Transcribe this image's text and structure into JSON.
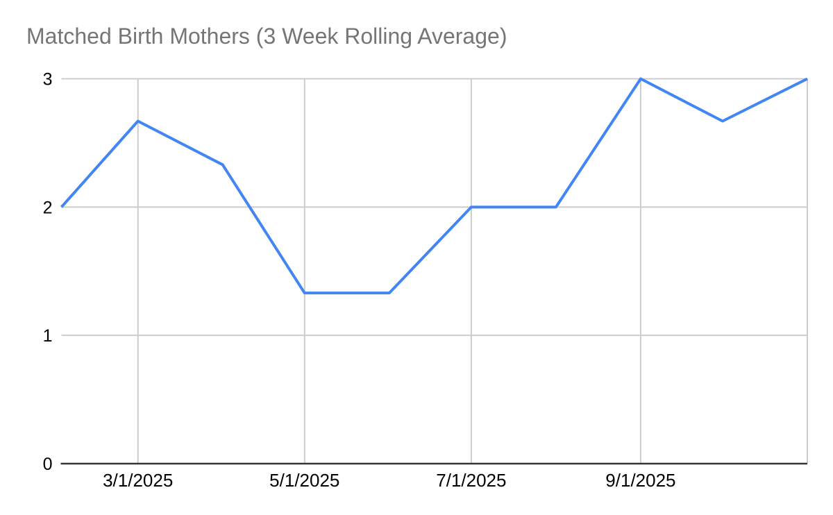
{
  "chart_data": {
    "type": "line",
    "title": "Matched Birth Mothers (3 Week Rolling Average)",
    "x": [
      "2/1/2025",
      "3/1/2025",
      "4/1/2025",
      "5/1/2025",
      "6/1/2025",
      "7/1/2025",
      "8/1/2025",
      "9/1/2025",
      "10/1/2025",
      "11/1/2025"
    ],
    "series": [
      {
        "values": [
          2,
          2.67,
          2.33,
          1.33,
          1.33,
          2,
          2,
          3,
          2.67,
          3
        ]
      }
    ],
    "xlabel": "",
    "ylabel": "",
    "ylim": [
      0,
      3
    ],
    "y_ticks": [
      0,
      1,
      2,
      3
    ],
    "x_tick_labels": [
      "3/1/2025",
      "5/1/2025",
      "7/1/2025",
      "9/1/2025"
    ],
    "x_gridline_dates": [
      "3/1/2025",
      "5/1/2025",
      "7/1/2025",
      "9/1/2025",
      "11/1/2025"
    ],
    "grid": true,
    "legend": "none",
    "markers": "none",
    "colors": {
      "line": "#4285f4",
      "gridline": "#cccccc",
      "axis": "#333333",
      "title": "#757575",
      "tick_label": "#000000",
      "background": "#ffffff"
    }
  }
}
